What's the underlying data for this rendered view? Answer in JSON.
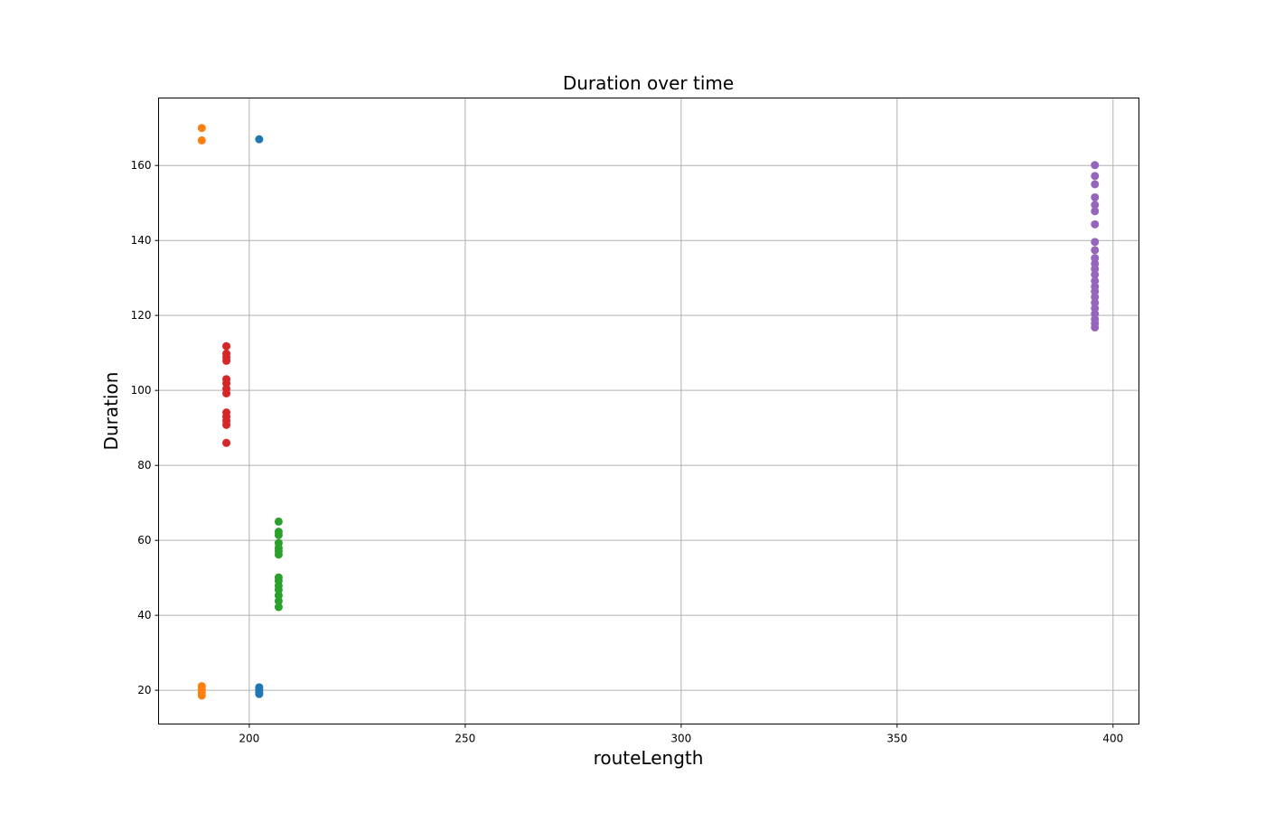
{
  "chart_data": {
    "type": "scatter",
    "title": "Duration over time",
    "xlabel": "routeLength",
    "ylabel": "Duration",
    "xlim": [
      179,
      406
    ],
    "ylim": [
      11,
      178
    ],
    "xticks": [
      200,
      250,
      300,
      350,
      400
    ],
    "yticks": [
      20,
      40,
      60,
      80,
      100,
      120,
      140,
      160
    ],
    "grid": true,
    "series": [
      {
        "color": "#1f77b4",
        "points": [
          {
            "x": 202.3,
            "y": 167.0
          },
          {
            "x": 202.3,
            "y": 20.8
          },
          {
            "x": 202.3,
            "y": 20.0
          },
          {
            "x": 202.3,
            "y": 19.4
          },
          {
            "x": 202.3,
            "y": 19.0
          }
        ]
      },
      {
        "color": "#ff7f0e",
        "points": [
          {
            "x": 189.0,
            "y": 170.0
          },
          {
            "x": 189.0,
            "y": 166.7
          },
          {
            "x": 189.0,
            "y": 21.1
          },
          {
            "x": 189.0,
            "y": 20.2
          },
          {
            "x": 189.0,
            "y": 19.4
          },
          {
            "x": 189.0,
            "y": 18.6
          }
        ]
      },
      {
        "color": "#2ca02c",
        "points": [
          {
            "x": 206.8,
            "y": 65.0
          },
          {
            "x": 206.8,
            "y": 62.3
          },
          {
            "x": 206.8,
            "y": 61.4
          },
          {
            "x": 206.8,
            "y": 59.3
          },
          {
            "x": 206.8,
            "y": 58.0
          },
          {
            "x": 206.8,
            "y": 57.2
          },
          {
            "x": 206.8,
            "y": 56.2
          },
          {
            "x": 206.8,
            "y": 50.1
          },
          {
            "x": 206.8,
            "y": 49.2
          },
          {
            "x": 206.8,
            "y": 47.9
          },
          {
            "x": 206.8,
            "y": 46.8
          },
          {
            "x": 206.8,
            "y": 45.3
          },
          {
            "x": 206.8,
            "y": 43.8
          },
          {
            "x": 206.8,
            "y": 42.2
          }
        ]
      },
      {
        "color": "#d62728",
        "points": [
          {
            "x": 194.7,
            "y": 111.8
          },
          {
            "x": 194.7,
            "y": 109.8
          },
          {
            "x": 194.7,
            "y": 108.8
          },
          {
            "x": 194.7,
            "y": 107.9
          },
          {
            "x": 194.7,
            "y": 103.0
          },
          {
            "x": 194.7,
            "y": 101.9
          },
          {
            "x": 194.7,
            "y": 100.4
          },
          {
            "x": 194.7,
            "y": 99.2
          },
          {
            "x": 194.7,
            "y": 94.1
          },
          {
            "x": 194.7,
            "y": 93.0
          },
          {
            "x": 194.7,
            "y": 91.9
          },
          {
            "x": 194.7,
            "y": 90.8
          },
          {
            "x": 194.7,
            "y": 86.0
          }
        ]
      },
      {
        "color": "#9467bd",
        "points": [
          {
            "x": 395.8,
            "y": 160.1
          },
          {
            "x": 395.8,
            "y": 157.2
          },
          {
            "x": 395.8,
            "y": 155.0
          },
          {
            "x": 395.8,
            "y": 151.5
          },
          {
            "x": 395.8,
            "y": 149.5
          },
          {
            "x": 395.8,
            "y": 147.8
          },
          {
            "x": 395.8,
            "y": 144.3
          },
          {
            "x": 395.8,
            "y": 139.6
          },
          {
            "x": 395.8,
            "y": 137.4
          },
          {
            "x": 395.8,
            "y": 135.3
          },
          {
            "x": 395.8,
            "y": 133.8
          },
          {
            "x": 395.8,
            "y": 132.4
          },
          {
            "x": 395.8,
            "y": 130.9
          },
          {
            "x": 395.8,
            "y": 129.2
          },
          {
            "x": 395.8,
            "y": 127.7
          },
          {
            "x": 395.8,
            "y": 126.4
          },
          {
            "x": 395.8,
            "y": 124.9
          },
          {
            "x": 395.8,
            "y": 123.4
          },
          {
            "x": 395.8,
            "y": 121.9
          },
          {
            "x": 395.8,
            "y": 120.4
          },
          {
            "x": 395.8,
            "y": 119.0
          },
          {
            "x": 395.8,
            "y": 117.9
          },
          {
            "x": 395.8,
            "y": 116.8
          }
        ]
      }
    ]
  }
}
